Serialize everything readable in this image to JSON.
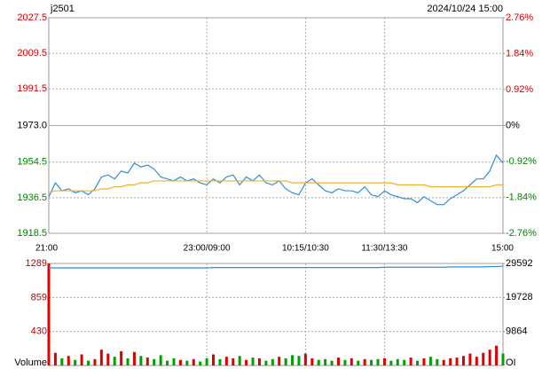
{
  "header": {
    "symbol": "j2501",
    "datetime": "2024/10/24 15:00"
  },
  "chart_data": [
    {
      "type": "line",
      "categories": [
        "21:00",
        null,
        null,
        null,
        null,
        null,
        null,
        null,
        null,
        null,
        null,
        null,
        null,
        null,
        null,
        null,
        null,
        null,
        null,
        null,
        null,
        null,
        null,
        null,
        "23:00/09:00",
        null,
        null,
        null,
        null,
        null,
        null,
        null,
        null,
        null,
        null,
        null,
        null,
        null,
        null,
        "10:15/10:30",
        null,
        null,
        null,
        null,
        null,
        null,
        null,
        null,
        null,
        null,
        null,
        "11:30/13:30",
        null,
        null,
        null,
        null,
        null,
        null,
        null,
        null,
        null,
        null,
        null,
        null,
        null,
        null,
        null,
        null,
        null,
        "15:00"
      ],
      "series": [
        {
          "color": "#2f8fdb",
          "values": [
            1937,
            1944,
            1940,
            1941,
            1939,
            1940,
            1938,
            1941,
            1947,
            1948,
            1946,
            1950,
            1949,
            1954,
            1952,
            1953,
            1951,
            1947,
            1946,
            1945,
            1947,
            1945,
            1946,
            1944,
            1943,
            1946,
            1944,
            1947,
            1948,
            1943,
            1947,
            1945,
            1948,
            1944,
            1943,
            1945,
            1941,
            1939,
            1938,
            1944,
            1946,
            1943,
            1940,
            1939,
            1941,
            1940,
            1940,
            1939,
            1942,
            1938,
            1937,
            1940,
            1938,
            1937,
            1936,
            1936,
            1934,
            1937,
            1935,
            1933,
            1933,
            1936,
            1938,
            1940,
            1943,
            1946,
            1946,
            1950,
            1958,
            1954
          ]
        },
        {
          "color": "#f0b030",
          "values": [
            1939,
            1940,
            1940,
            1940,
            1940,
            1940,
            1940,
            1940,
            1941,
            1941,
            1942,
            1942,
            1943,
            1943,
            1944,
            1944,
            1945,
            1945,
            1945,
            1945,
            1945,
            1945,
            1945,
            1945,
            1945,
            1945,
            1945,
            1945,
            1945,
            1945,
            1945,
            1945,
            1945,
            1945,
            1945,
            1945,
            1945,
            1944,
            1944,
            1944,
            1944,
            1944,
            1944,
            1944,
            1944,
            1944,
            1944,
            1944,
            1944,
            1944,
            1944,
            1944,
            1944,
            1943,
            1943,
            1943,
            1943,
            1943,
            1942,
            1942,
            1942,
            1942,
            1942,
            1942,
            1942,
            1942,
            1942,
            1942,
            1943,
            1943
          ]
        }
      ],
      "ylim": [
        1918.5,
        2027.5
      ],
      "yticks": [
        1918.5,
        1936.5,
        1954.5,
        {
          "value": 1973,
          "label": "1973.0"
        },
        1991.5,
        2009.5,
        2027.5
      ],
      "y2lim": [
        -2.76,
        2.76
      ],
      "y2ticks": [
        {
          "value": -2.76,
          "label": "-2.76%"
        },
        {
          "value": -1.84,
          "label": "-1.84%"
        },
        {
          "value": -0.92,
          "label": "-0.92%"
        },
        {
          "value": 0,
          "label": "0%"
        },
        {
          "value": 0.92,
          "label": "0.92%"
        },
        {
          "value": 1.84,
          "label": "1.84%"
        },
        {
          "value": 2.76,
          "label": "2.76%"
        }
      ],
      "grid": true,
      "up_color": "#d40000",
      "down_color": "#008000"
    },
    {
      "type": "bar",
      "ylabel": "Volume",
      "y2label": "OI",
      "series": [
        {
          "up_color": "#e00000",
          "down_color": "#00a000",
          "values": [
            1289,
            160,
            90,
            120,
            70,
            140,
            60,
            80,
            200,
            150,
            110,
            180,
            90,
            170,
            120,
            100,
            80,
            130,
            60,
            90,
            70,
            60,
            80,
            50,
            90,
            140,
            80,
            110,
            90,
            120,
            70,
            100,
            90,
            60,
            80,
            110,
            90,
            130,
            120,
            150,
            90,
            70,
            80,
            60,
            100,
            70,
            90,
            60,
            80,
            70,
            80,
            90,
            60,
            80,
            70,
            100,
            60,
            90,
            110,
            80,
            70,
            90,
            100,
            120,
            150,
            110,
            160,
            200,
            250,
            150
          ]
        },
        {
          "axis": "y2",
          "color": "#2f8fdb",
          "values": [
            28300,
            28300,
            28300,
            28300,
            28300,
            28300,
            28300,
            28300,
            28300,
            28300,
            28300,
            28300,
            28300,
            28300,
            28300,
            28300,
            28300,
            28300,
            28300,
            28300,
            28300,
            28300,
            28300,
            28300,
            28300,
            28400,
            28400,
            28400,
            28400,
            28400,
            28400,
            28400,
            28400,
            28400,
            28400,
            28400,
            28400,
            28400,
            28400,
            28400,
            28400,
            28400,
            28400,
            28400,
            28400,
            28400,
            28400,
            28400,
            28400,
            28400,
            28400,
            28500,
            28500,
            28500,
            28500,
            28500,
            28500,
            28500,
            28500,
            28500,
            28500,
            28600,
            28600,
            28600,
            28600,
            28600,
            28600,
            28700,
            28700,
            28800
          ]
        }
      ],
      "ylim": [
        0,
        1289
      ],
      "yticks": [
        430,
        859,
        1289
      ],
      "y2lim": [
        0,
        29592
      ],
      "y2ticks": [
        9864,
        19728,
        29592
      ],
      "grid": true
    }
  ]
}
